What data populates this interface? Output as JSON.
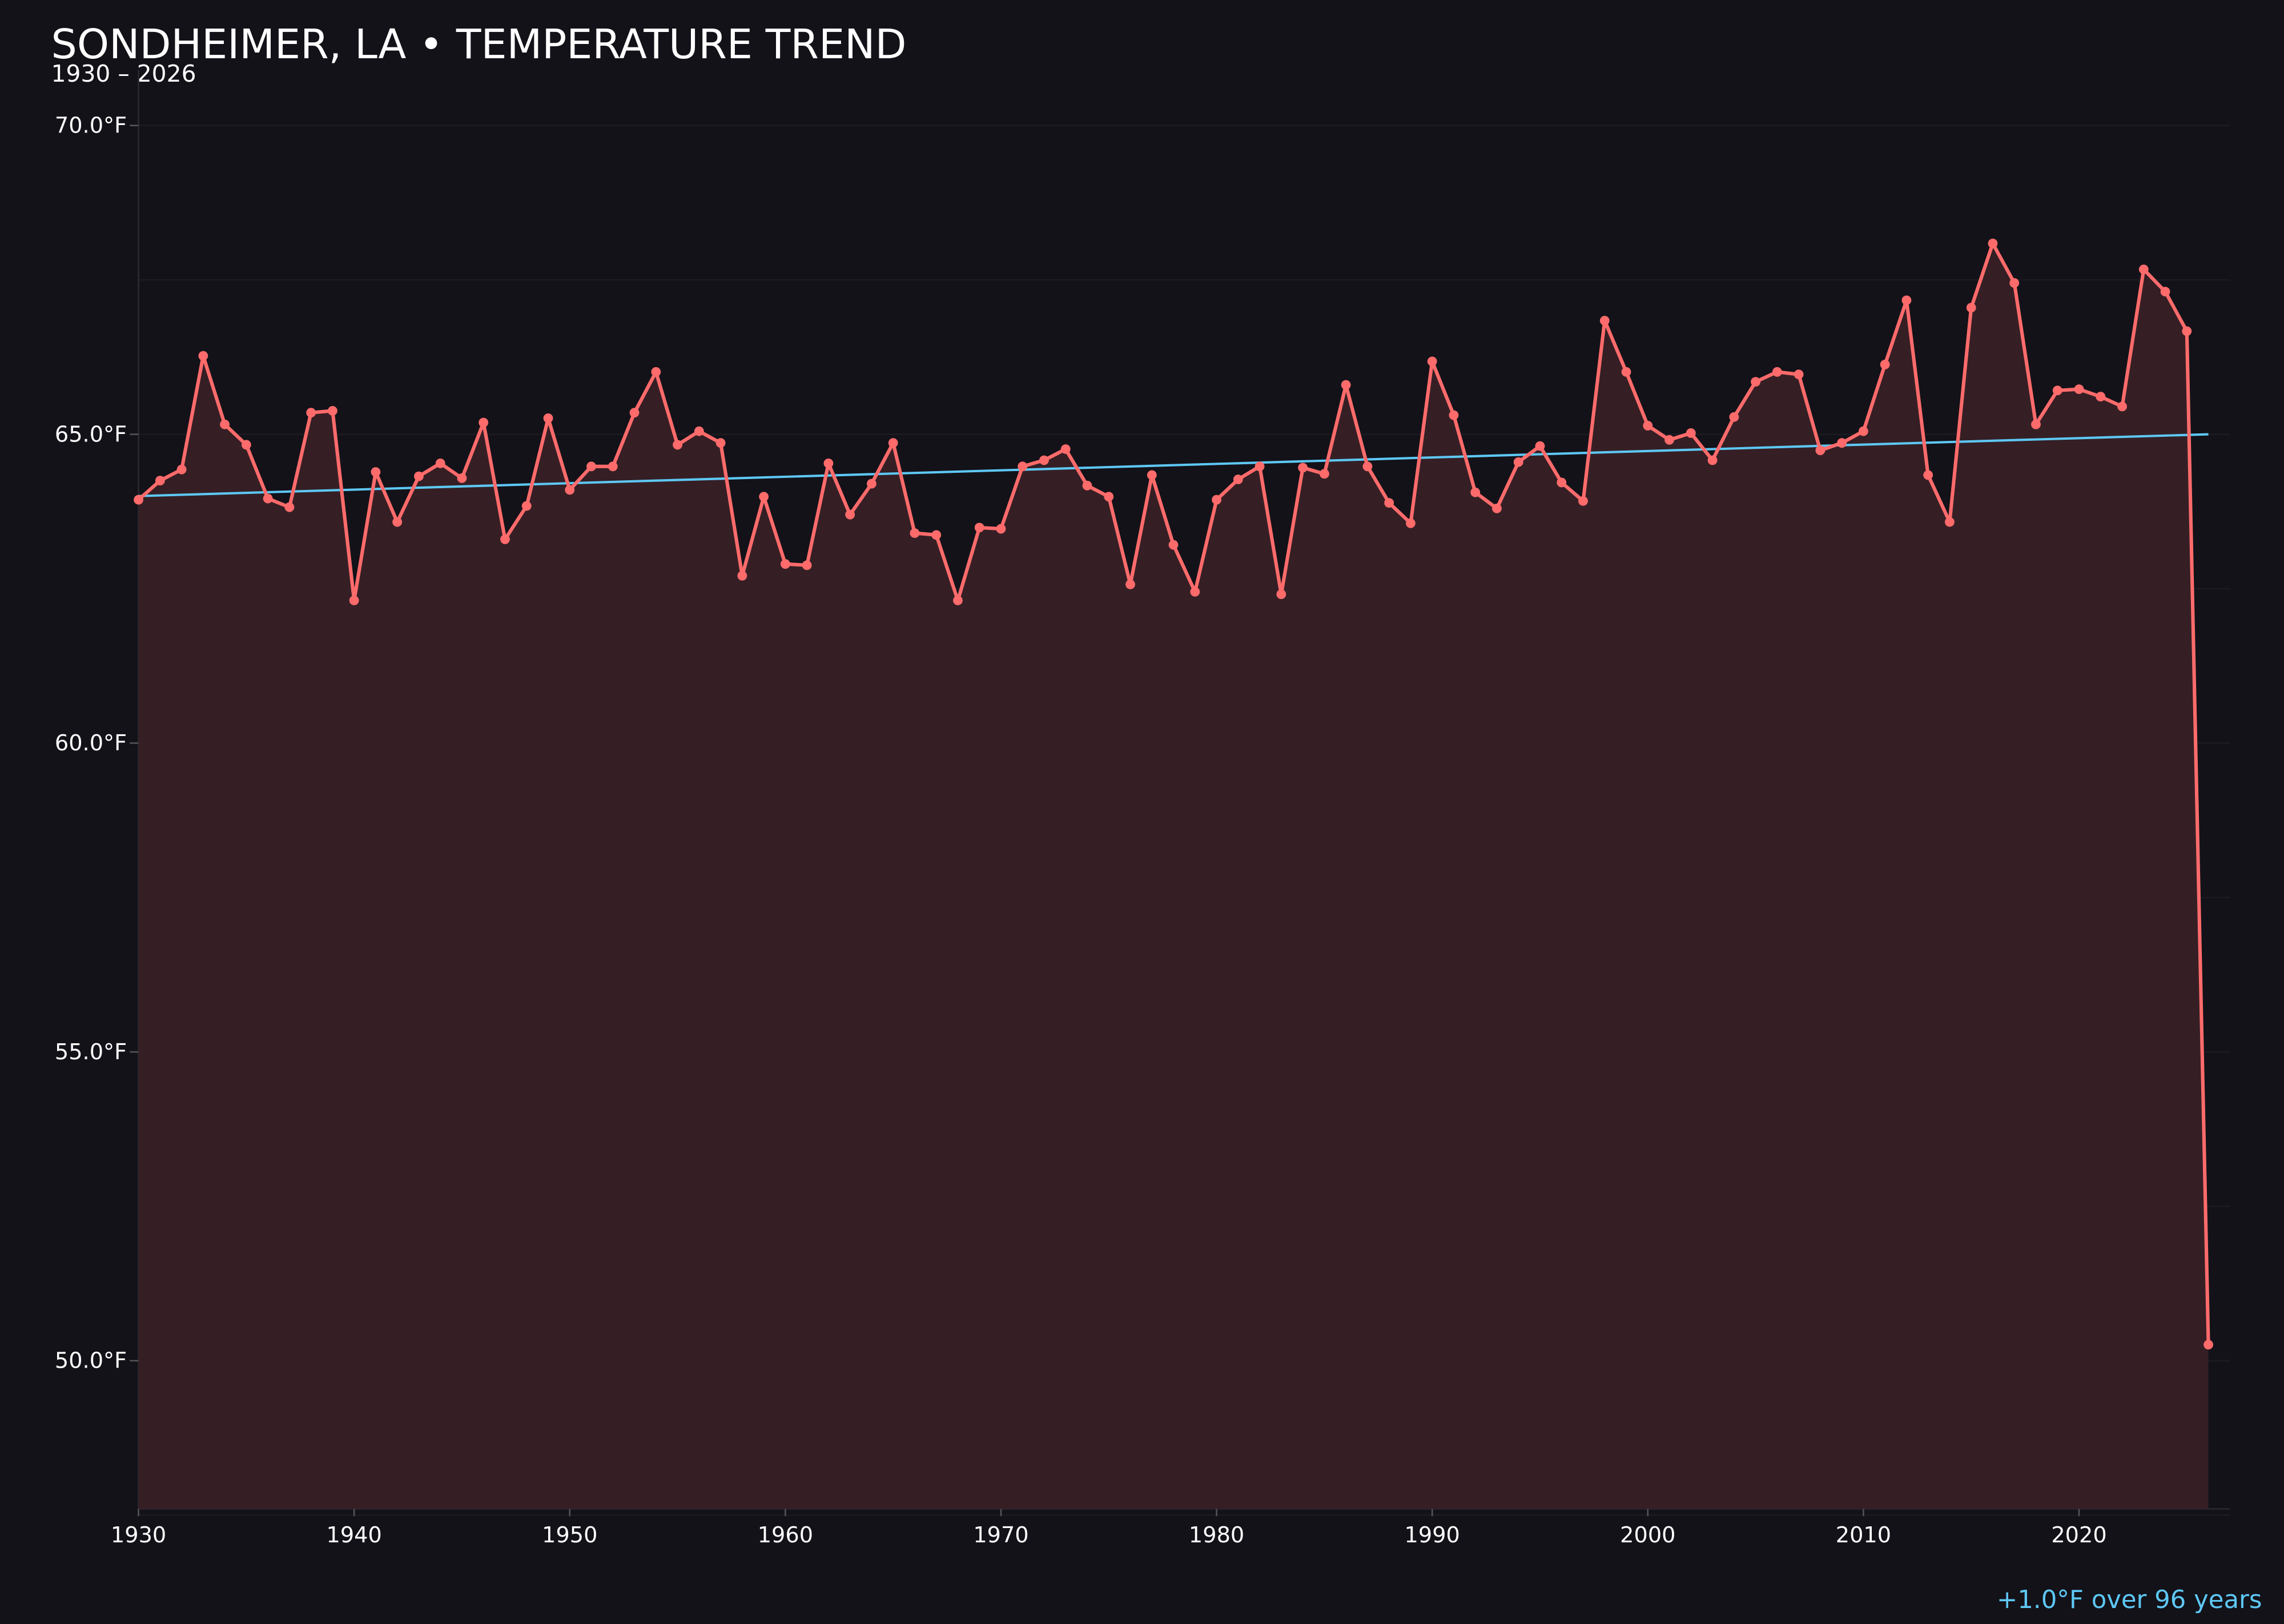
{
  "chart_data": {
    "type": "line",
    "title": "SONDHEIMER, LA • TEMPERATURE TREND",
    "subtitle": "1930 – 2026",
    "xlabel": "",
    "ylabel": "",
    "xlim": [
      1930,
      2027
    ],
    "ylim": [
      47.6,
      70.9
    ],
    "grid": true,
    "x_ticks": [
      1930,
      1940,
      1950,
      1960,
      1970,
      1980,
      1990,
      2000,
      2010,
      2020
    ],
    "x_tick_labels": [
      "1930",
      "1940",
      "1950",
      "1960",
      "1970",
      "1980",
      "1990",
      "2000",
      "2010",
      "2020"
    ],
    "y_ticks": [
      50,
      55,
      60,
      65,
      70
    ],
    "y_tick_labels": [
      "50.0°F",
      "55.0°F",
      "60.0°F",
      "65.0°F",
      "70.0°F"
    ],
    "x": [
      1930,
      1931,
      1932,
      1933,
      1934,
      1935,
      1936,
      1937,
      1938,
      1939,
      1940,
      1941,
      1942,
      1943,
      1944,
      1945,
      1946,
      1947,
      1948,
      1949,
      1950,
      1951,
      1952,
      1953,
      1954,
      1955,
      1956,
      1957,
      1958,
      1959,
      1960,
      1961,
      1962,
      1963,
      1964,
      1965,
      1966,
      1967,
      1968,
      1969,
      1970,
      1971,
      1972,
      1973,
      1974,
      1975,
      1976,
      1977,
      1978,
      1979,
      1980,
      1981,
      1982,
      1983,
      1984,
      1985,
      1986,
      1987,
      1988,
      1989,
      1990,
      1991,
      1992,
      1993,
      1994,
      1995,
      1996,
      1997,
      1998,
      1999,
      2000,
      2001,
      2002,
      2003,
      2004,
      2005,
      2006,
      2007,
      2008,
      2009,
      2010,
      2011,
      2012,
      2013,
      2014,
      2015,
      2016,
      2017,
      2018,
      2019,
      2020,
      2021,
      2022,
      2023,
      2024,
      2025,
      2026
    ],
    "series": [
      {
        "values": [
          63.94,
          64.25,
          64.43,
          66.27,
          65.16,
          64.83,
          63.96,
          63.82,
          65.35,
          65.38,
          62.31,
          64.39,
          63.58,
          64.32,
          64.53,
          64.29,
          65.19,
          63.3,
          63.84,
          65.26,
          64.1,
          64.48,
          64.48,
          65.35,
          66.01,
          64.83,
          65.05,
          64.86,
          62.71,
          63.99,
          62.9,
          62.88,
          64.53,
          63.7,
          64.2,
          64.86,
          63.4,
          63.37,
          62.31,
          63.49,
          63.47,
          64.48,
          64.58,
          64.76,
          64.17,
          63.99,
          62.57,
          64.34,
          63.21,
          62.45,
          63.94,
          64.27,
          64.48,
          62.41,
          64.46,
          64.36,
          65.8,
          64.48,
          63.89,
          63.56,
          66.18,
          65.31,
          64.06,
          63.8,
          64.55,
          64.81,
          64.22,
          63.92,
          66.84,
          66.01,
          65.14,
          64.91,
          65.02,
          64.58,
          65.28,
          65.85,
          66.01,
          65.97,
          64.74,
          64.86,
          65.05,
          66.13,
          67.17,
          64.34,
          63.58,
          67.05,
          68.09,
          67.45,
          65.16,
          65.71,
          65.73,
          65.61,
          65.45,
          67.67,
          67.31,
          66.67,
          50.26
        ],
        "color": "#ff6b6b",
        "fill": "#351f25"
      }
    ],
    "trend": {
      "x": [
        1930,
        2026
      ],
      "y": [
        64.0,
        65.0
      ],
      "color": "#5ec8f5"
    },
    "annotation": "+1.0°F over 96 years",
    "colors": {
      "background": "#131219",
      "text": "#ffffff",
      "grid": "#1f1d24",
      "annotation": "#5ec8f5"
    }
  }
}
